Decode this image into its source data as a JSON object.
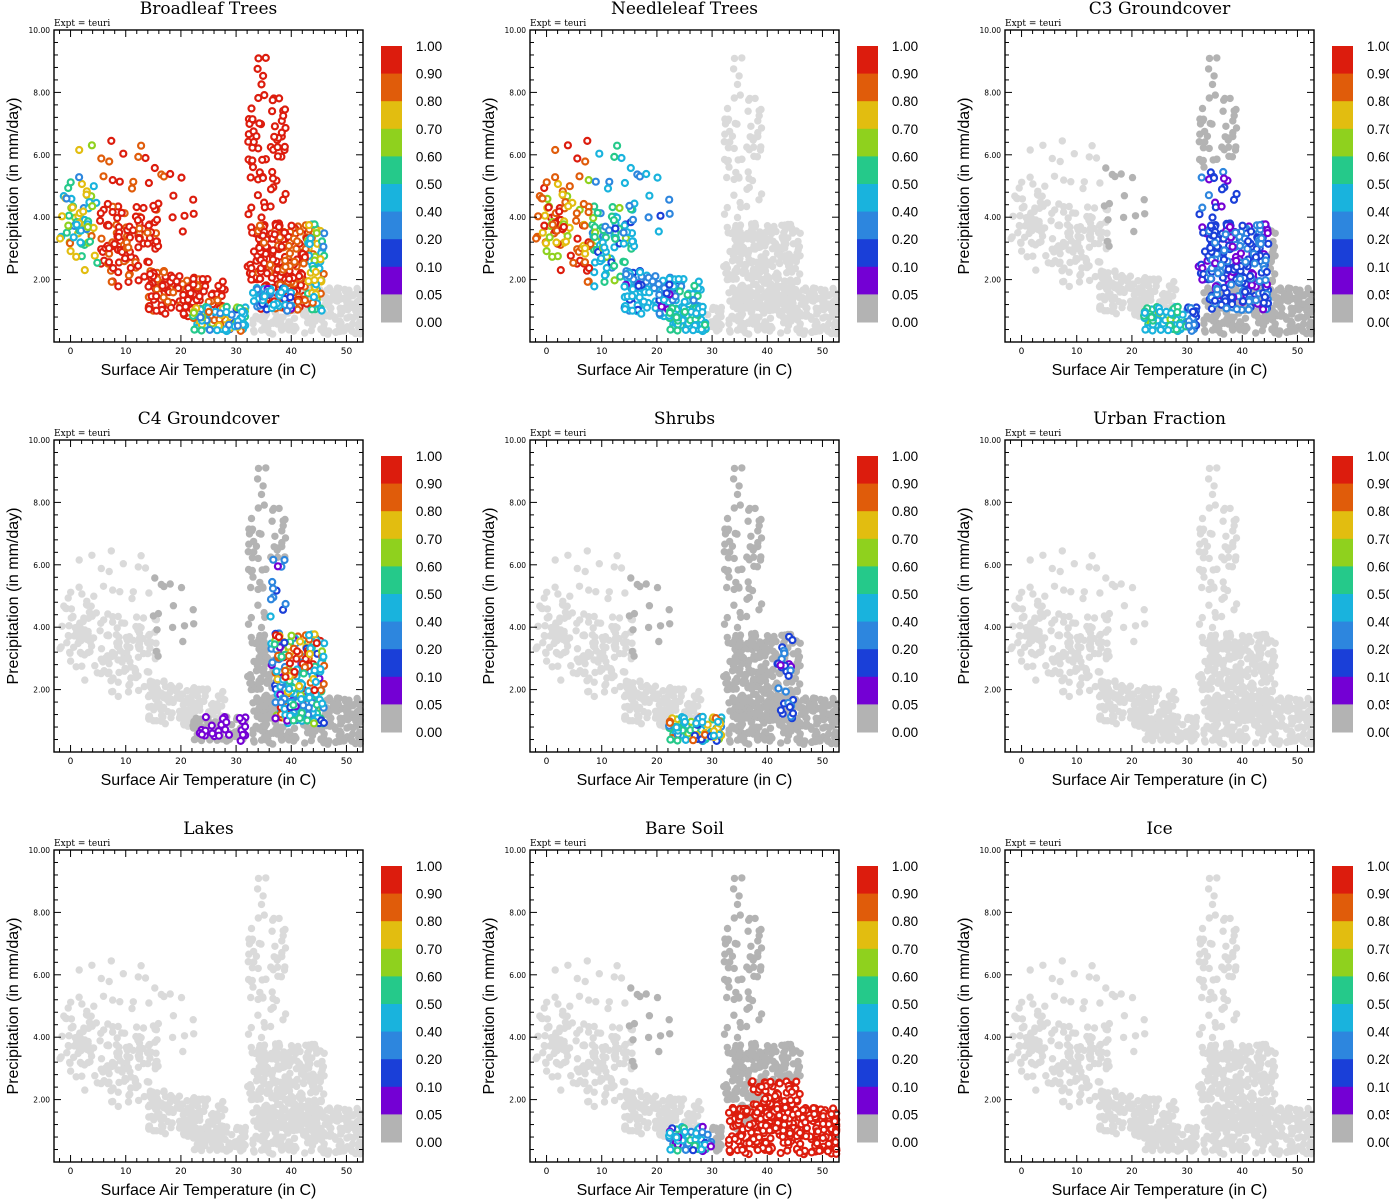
{
  "figure": {
    "expt_label": "Expt = teuri",
    "xlabel": "Surface Air Temperature (in C)",
    "ylabel": "Precipitation (in mm/day)",
    "x_ticks": [
      "0",
      "10",
      "20",
      "30",
      "40",
      "50"
    ],
    "y_ticks": [
      "2.00",
      "4.00",
      "6.00",
      "8.00",
      "10.00"
    ],
    "colorbar_labels": [
      "0.00",
      "0.05",
      "0.10",
      "0.20",
      "0.40",
      "0.50",
      "0.60",
      "0.70",
      "0.80",
      "0.90",
      "1.00"
    ],
    "colorbar_colors": [
      "#b3b3b3",
      "#7400d4",
      "#1a3fd8",
      "#2d86de",
      "#19b3dd",
      "#25c98a",
      "#8fd11e",
      "#e2bd10",
      "#e05c0a",
      "#dc1c0d"
    ],
    "background_point_color": "#dadada"
  },
  "chart_data": [
    {
      "type": "scatter",
      "title": "Broadleaf Trees",
      "pattern": "broadleaf",
      "xlim": [
        -3,
        53
      ],
      "ylim": [
        0,
        10
      ]
    },
    {
      "type": "scatter",
      "title": "Needleleaf Trees",
      "pattern": "needleleaf",
      "xlim": [
        -3,
        53
      ],
      "ylim": [
        0,
        10
      ]
    },
    {
      "type": "scatter",
      "title": "C3 Groundcover",
      "pattern": "c3",
      "xlim": [
        -3,
        53
      ],
      "ylim": [
        0,
        10
      ]
    },
    {
      "type": "scatter",
      "title": "C4 Groundcover",
      "pattern": "c4",
      "xlim": [
        -3,
        53
      ],
      "ylim": [
        0,
        10
      ]
    },
    {
      "type": "scatter",
      "title": "Shrubs",
      "pattern": "shrubs",
      "xlim": [
        -3,
        53
      ],
      "ylim": [
        0,
        10
      ]
    },
    {
      "type": "scatter",
      "title": "Urban Fraction",
      "pattern": "none",
      "xlim": [
        -3,
        53
      ],
      "ylim": [
        0,
        10
      ]
    },
    {
      "type": "scatter",
      "title": "Lakes",
      "pattern": "none",
      "xlim": [
        -3,
        53
      ],
      "ylim": [
        0,
        10
      ]
    },
    {
      "type": "scatter",
      "title": "Bare Soil",
      "pattern": "baresoil",
      "xlim": [
        -3,
        53
      ],
      "ylim": [
        0,
        10
      ]
    },
    {
      "type": "scatter",
      "title": "Ice",
      "pattern": "none",
      "xlim": [
        -3,
        53
      ],
      "ylim": [
        0,
        10
      ]
    }
  ]
}
